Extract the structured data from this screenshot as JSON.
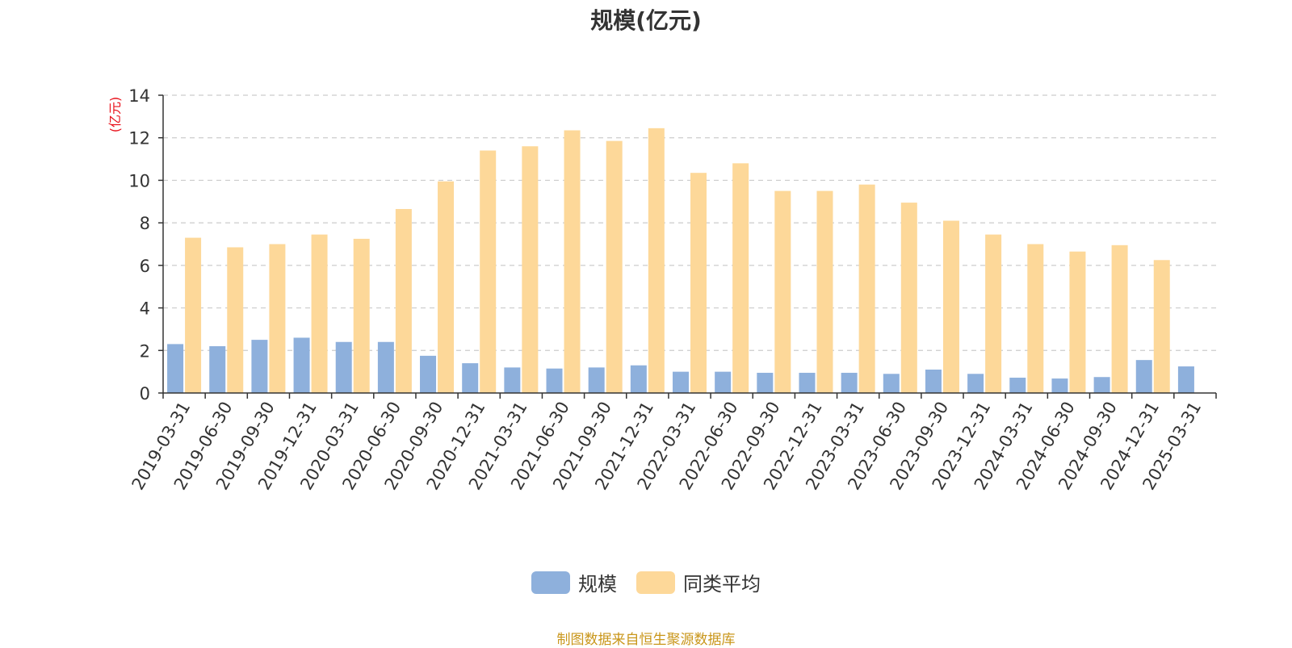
{
  "chart_data": {
    "type": "bar",
    "title": "规模(亿元)",
    "ylabel": "(亿元)",
    "xlabel": "",
    "ylim": [
      0,
      14
    ],
    "yticks": [
      0,
      2,
      4,
      6,
      8,
      10,
      12,
      14
    ],
    "grid": true,
    "legend_position": "bottom",
    "categories": [
      "2019-03-31",
      "2019-06-30",
      "2019-09-30",
      "2019-12-31",
      "2020-03-31",
      "2020-06-30",
      "2020-09-30",
      "2020-12-31",
      "2021-03-31",
      "2021-06-30",
      "2021-09-30",
      "2021-12-31",
      "2022-03-31",
      "2022-06-30",
      "2022-09-30",
      "2022-12-31",
      "2023-03-31",
      "2023-06-30",
      "2023-09-30",
      "2023-12-31",
      "2024-03-31",
      "2024-06-30",
      "2024-09-30",
      "2024-12-31",
      "2025-03-31"
    ],
    "series": [
      {
        "name": "规模",
        "color": "#8eb0dc",
        "values": [
          2.3,
          2.2,
          2.5,
          2.6,
          2.4,
          2.4,
          1.75,
          1.4,
          1.2,
          1.15,
          1.2,
          1.3,
          1.0,
          1.0,
          0.95,
          0.95,
          0.95,
          0.9,
          1.1,
          0.9,
          0.72,
          0.68,
          0.75,
          1.55,
          1.25
        ]
      },
      {
        "name": "同类平均",
        "color": "#fdd899",
        "values": [
          7.3,
          6.85,
          7.0,
          7.45,
          7.25,
          8.65,
          9.95,
          11.4,
          11.6,
          12.35,
          11.85,
          12.45,
          10.35,
          10.8,
          9.5,
          9.5,
          9.8,
          8.95,
          8.1,
          7.45,
          7.0,
          6.65,
          6.95,
          6.25,
          null
        ]
      }
    ]
  },
  "source_text": "制图数据来自恒生聚源数据库"
}
